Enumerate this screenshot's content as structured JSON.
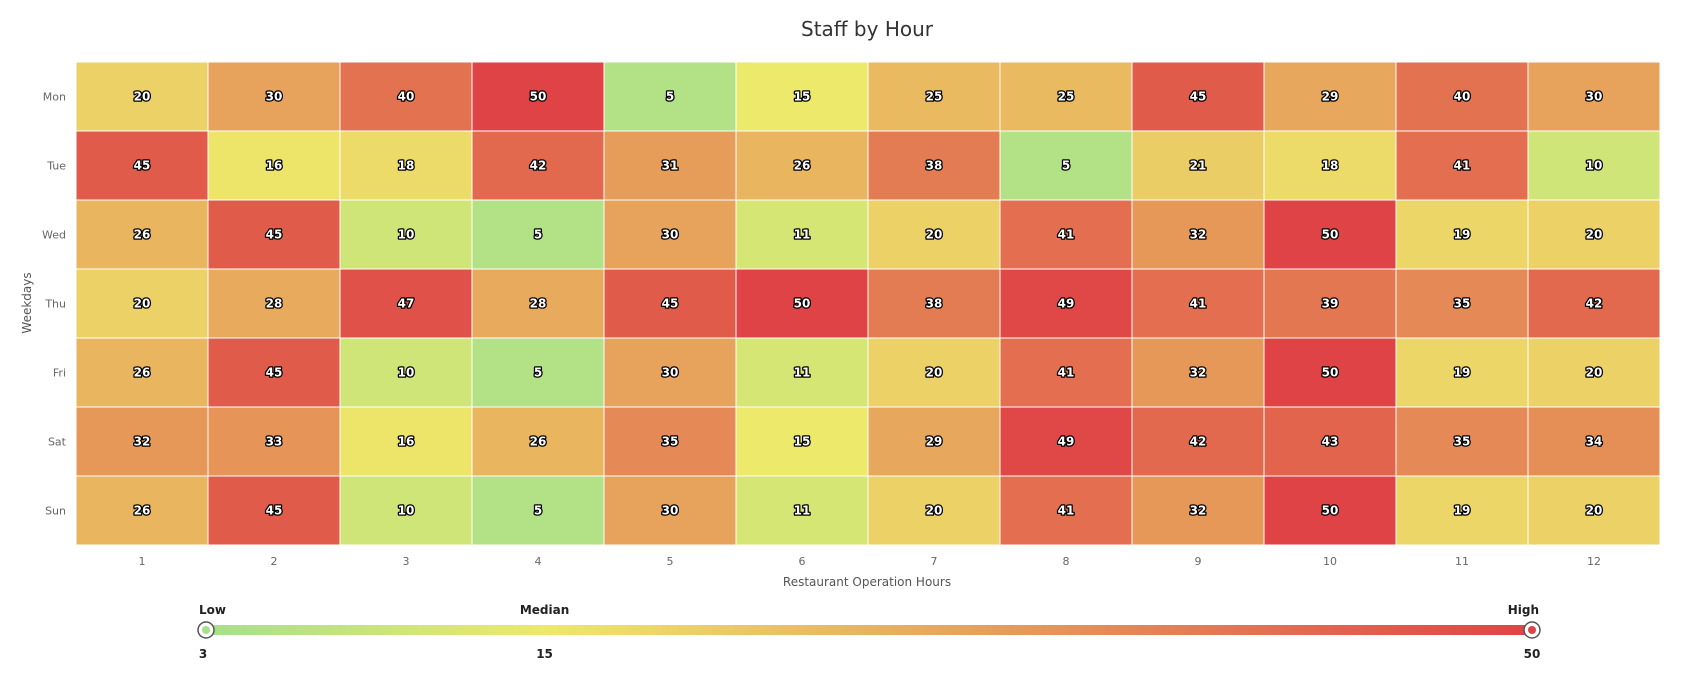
{
  "chart_data": {
    "type": "heatmap",
    "title": "Staff by Hour",
    "xlabel": "Restaurant Operation Hours",
    "ylabel": "Weekdays",
    "x_categories": [
      "1",
      "2",
      "3",
      "4",
      "5",
      "6",
      "7",
      "8",
      "9",
      "10",
      "11",
      "12"
    ],
    "y_categories": [
      "Mon",
      "Tue",
      "Wed",
      "Thu",
      "Fri",
      "Sat",
      "Sun"
    ],
    "values": [
      [
        20,
        30,
        40,
        50,
        5,
        15,
        25,
        25,
        45,
        29,
        40,
        30
      ],
      [
        45,
        16,
        18,
        42,
        31,
        26,
        38,
        5,
        21,
        18,
        41,
        10
      ],
      [
        26,
        45,
        10,
        5,
        30,
        11,
        20,
        41,
        32,
        50,
        19,
        20
      ],
      [
        20,
        28,
        47,
        28,
        45,
        50,
        38,
        49,
        41,
        39,
        35,
        42
      ],
      [
        26,
        45,
        10,
        5,
        30,
        11,
        20,
        41,
        32,
        50,
        19,
        20
      ],
      [
        32,
        33,
        16,
        26,
        35,
        15,
        29,
        49,
        42,
        43,
        35,
        34
      ],
      [
        26,
        45,
        10,
        5,
        30,
        11,
        20,
        41,
        32,
        50,
        19,
        20
      ]
    ],
    "color_scale": {
      "min": 3,
      "median": 15,
      "max": 50,
      "min_label": "Low",
      "median_label": "Median",
      "max_label": "High",
      "min_tick": "3",
      "median_tick": "15",
      "max_tick": "50",
      "colors": {
        "low": "#a6e08a",
        "median": "#ede96b",
        "high": "#df4346"
      }
    },
    "grid": false,
    "legend_position": "bottom"
  }
}
